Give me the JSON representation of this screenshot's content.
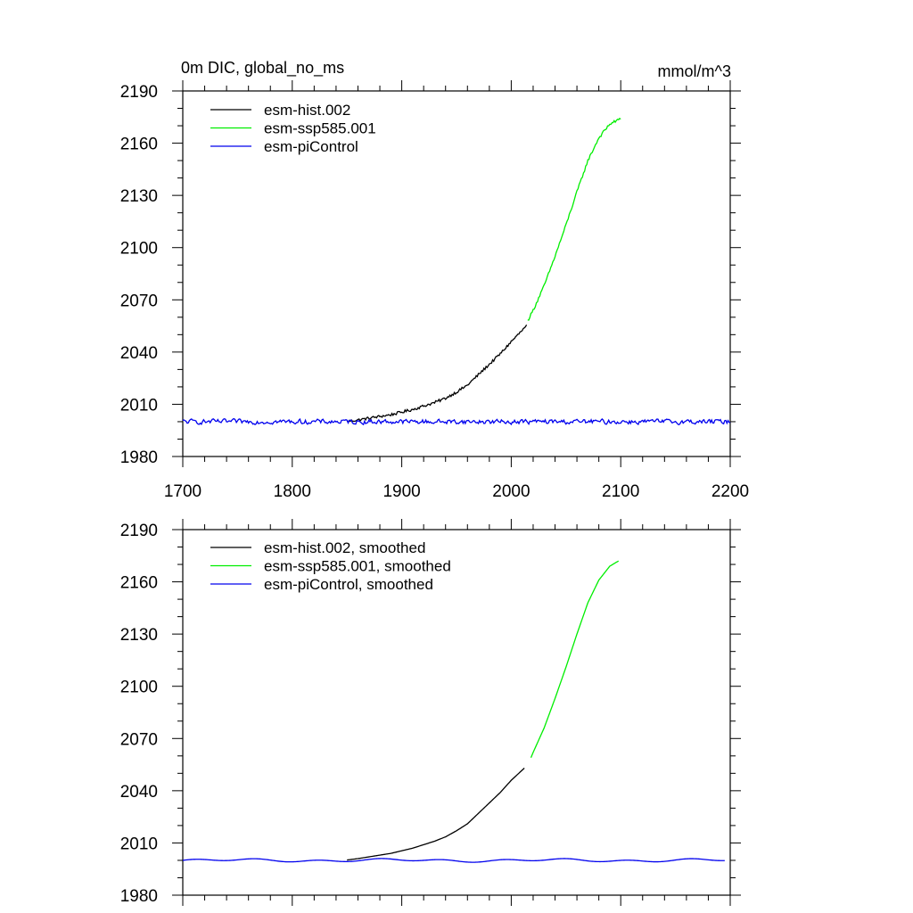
{
  "chart_data": [
    {
      "type": "line",
      "title": "0m DIC, global_no_ms",
      "units": "mmol/m^3",
      "xlabel": "",
      "ylabel": "",
      "xlim": [
        1700,
        2200
      ],
      "ylim": [
        1980,
        2190
      ],
      "xticks": [
        1700,
        1800,
        1900,
        2000,
        2100,
        2200
      ],
      "yticks": [
        1980,
        2010,
        2040,
        2070,
        2100,
        2130,
        2160,
        2190
      ],
      "legend_position": "top-left",
      "series": [
        {
          "name": "esm-hist.002",
          "color": "#000000",
          "noise": "jagged",
          "x": [
            1850,
            1860,
            1870,
            1880,
            1890,
            1900,
            1910,
            1920,
            1930,
            1940,
            1950,
            1960,
            1970,
            1980,
            1990,
            2000,
            2014
          ],
          "values": [
            2000.2,
            2001.0,
            2002.0,
            2003.0,
            2004.0,
            2005.5,
            2007.0,
            2009.0,
            2011.0,
            2013.5,
            2017.0,
            2021.0,
            2027.0,
            2033.0,
            2039.0,
            2046.0,
            2055.0
          ]
        },
        {
          "name": "esm-ssp585.001",
          "color": "#00ee00",
          "noise": "jagged",
          "x": [
            2015,
            2020,
            2030,
            2040,
            2050,
            2060,
            2070,
            2080,
            2090,
            2100
          ],
          "values": [
            2058.0,
            2064.0,
            2078.0,
            2095.0,
            2113.0,
            2132.0,
            2150.0,
            2163.0,
            2171.0,
            2174.0
          ]
        },
        {
          "name": "esm-piControl",
          "color": "#0000ee",
          "noise": "wiggle",
          "x": [
            1700,
            1750,
            1800,
            1850,
            1900,
            1950,
            2000,
            2050,
            2100,
            2150,
            2200
          ],
          "values": [
            2000,
            2000,
            2000,
            2000,
            2000,
            2000,
            2000,
            2000,
            2000,
            2000,
            2000
          ]
        }
      ]
    },
    {
      "type": "line",
      "title": "",
      "xlabel": "",
      "ylabel": "",
      "xlim": [
        1700,
        2200
      ],
      "ylim": [
        1980,
        2190
      ],
      "yticks": [
        1980,
        2010,
        2040,
        2070,
        2100,
        2130,
        2160,
        2190
      ],
      "legend_position": "top-left",
      "series": [
        {
          "name": "esm-hist.002, smoothed",
          "color": "#000000",
          "noise": "smooth",
          "x": [
            1850,
            1860,
            1870,
            1880,
            1890,
            1900,
            1910,
            1920,
            1930,
            1940,
            1950,
            1960,
            1970,
            1980,
            1990,
            2000,
            2012
          ],
          "values": [
            2000.2,
            2001.0,
            2002.0,
            2003.0,
            2004.0,
            2005.5,
            2007.0,
            2009.0,
            2011.0,
            2013.5,
            2017.0,
            2021.0,
            2027.0,
            2033.0,
            2039.0,
            2046.0,
            2053.0
          ]
        },
        {
          "name": "esm-ssp585.001, smoothed",
          "color": "#00ee00",
          "noise": "smooth",
          "x": [
            2018,
            2020,
            2030,
            2040,
            2050,
            2060,
            2070,
            2080,
            2090,
            2098
          ],
          "values": [
            2059.0,
            2062.0,
            2076.0,
            2093.0,
            2111.0,
            2130.0,
            2148.0,
            2161.0,
            2169.0,
            2172.0
          ]
        },
        {
          "name": "esm-piControl, smoothed",
          "color": "#0000ee",
          "noise": "gentle",
          "x": [
            1700,
            1750,
            1800,
            1850,
            1900,
            1950,
            2000,
            2050,
            2100,
            2150,
            2195
          ],
          "values": [
            2000,
            2000,
            2000,
            2000,
            2000,
            2000,
            2000,
            2000,
            2000,
            2000,
            2000
          ]
        }
      ]
    }
  ]
}
